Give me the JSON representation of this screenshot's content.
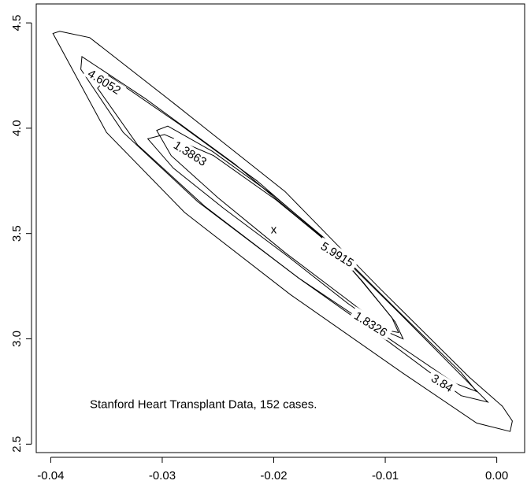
{
  "chart_data": {
    "type": "contour",
    "title": "",
    "xlabel": "",
    "ylabel": "",
    "xlim": [
      -0.0413,
      0.0025
    ],
    "ylim": [
      2.46,
      4.59
    ],
    "x_ticks": [
      {
        "value": -0.04,
        "label": "-0.04"
      },
      {
        "value": -0.03,
        "label": "-0.03"
      },
      {
        "value": -0.02,
        "label": "-0.02"
      },
      {
        "value": -0.01,
        "label": "-0.01"
      },
      {
        "value": 0.0,
        "label": "0.00"
      }
    ],
    "y_ticks": [
      {
        "value": 2.5,
        "label": "2.5"
      },
      {
        "value": 3.0,
        "label": "3.0"
      },
      {
        "value": 3.5,
        "label": "3.5"
      },
      {
        "value": 4.0,
        "label": "4.0"
      },
      {
        "value": 4.5,
        "label": "4.5"
      }
    ],
    "center": {
      "x": -0.02,
      "y": 3.52,
      "marker": "x"
    },
    "contours": [
      {
        "level": "1.3863",
        "label_at": {
          "x": -0.0275,
          "y": 3.88
        },
        "points": [
          [
            -0.0295,
            4.01
          ],
          [
            -0.0255,
            3.89
          ],
          [
            -0.02,
            3.68
          ],
          [
            -0.0155,
            3.48
          ],
          [
            -0.0122,
            3.28
          ],
          [
            -0.0094,
            3.1
          ],
          [
            -0.0088,
            3.03
          ],
          [
            -0.0098,
            3.04
          ],
          [
            -0.0135,
            3.19
          ],
          [
            -0.019,
            3.41
          ],
          [
            -0.025,
            3.67
          ],
          [
            -0.0292,
            3.87
          ],
          [
            -0.0305,
            3.99
          ]
        ]
      },
      {
        "level": "1.8326",
        "label_at": {
          "x": -0.0113,
          "y": 3.07
        },
        "points": [
          [
            -0.0298,
            3.97
          ],
          [
            -0.0254,
            3.87
          ],
          [
            -0.0198,
            3.66
          ],
          [
            -0.0152,
            3.46
          ],
          [
            -0.012,
            3.27
          ],
          [
            -0.0091,
            3.08
          ],
          [
            -0.0084,
            3.0
          ],
          [
            -0.0097,
            3.03
          ],
          [
            -0.0134,
            3.17
          ],
          [
            -0.0187,
            3.39
          ],
          [
            -0.0245,
            3.62
          ],
          [
            -0.029,
            3.81
          ],
          [
            -0.0313,
            3.95
          ]
        ]
      },
      {
        "level": "3.84",
        "label_at": {
          "x": -0.0049,
          "y": 2.79
        },
        "points": [
          [
            -0.0348,
            4.25
          ],
          [
            -0.0285,
            4.02
          ],
          [
            -0.0215,
            3.75
          ],
          [
            -0.0145,
            3.43
          ],
          [
            -0.0088,
            3.13
          ],
          [
            -0.0032,
            2.84
          ],
          [
            -0.0018,
            2.75
          ],
          [
            -0.0038,
            2.79
          ],
          [
            -0.0102,
            3.02
          ],
          [
            -0.0178,
            3.29
          ],
          [
            -0.0262,
            3.63
          ],
          [
            -0.0322,
            3.92
          ],
          [
            -0.0358,
            4.19
          ]
        ]
      },
      {
        "level": "4.6052",
        "label_at": {
          "x": -0.0352,
          "y": 4.22
        },
        "points": [
          [
            -0.0372,
            4.34
          ],
          [
            -0.0315,
            4.14
          ],
          [
            -0.0235,
            3.83
          ],
          [
            -0.015,
            3.45
          ],
          [
            -0.0085,
            3.11
          ],
          [
            -0.0025,
            2.79
          ],
          [
            -0.0008,
            2.7
          ],
          [
            -0.0032,
            2.73
          ],
          [
            -0.0098,
            2.99
          ],
          [
            -0.0178,
            3.29
          ],
          [
            -0.0268,
            3.65
          ],
          [
            -0.0335,
            3.98
          ],
          [
            -0.0373,
            4.28
          ]
        ]
      },
      {
        "level": "5.9915",
        "label_at": {
          "x": -0.0143,
          "y": 3.4
        },
        "points": [
          [
            -0.0392,
            4.46
          ],
          [
            -0.0365,
            4.43
          ],
          [
            -0.029,
            4.12
          ],
          [
            -0.019,
            3.7
          ],
          [
            -0.0105,
            3.24
          ],
          [
            -0.0025,
            2.82
          ],
          [
            0.0005,
            2.68
          ],
          [
            0.0014,
            2.61
          ],
          [
            0.0012,
            2.56
          ],
          [
            -0.0018,
            2.6
          ],
          [
            -0.0085,
            2.84
          ],
          [
            -0.0185,
            3.21
          ],
          [
            -0.028,
            3.6
          ],
          [
            -0.035,
            3.98
          ],
          [
            -0.0398,
            4.45
          ]
        ]
      }
    ],
    "annotation": {
      "text": "Stanford Heart Transplant Data, 152 cases.",
      "x": -0.0365,
      "y": 2.69
    }
  }
}
